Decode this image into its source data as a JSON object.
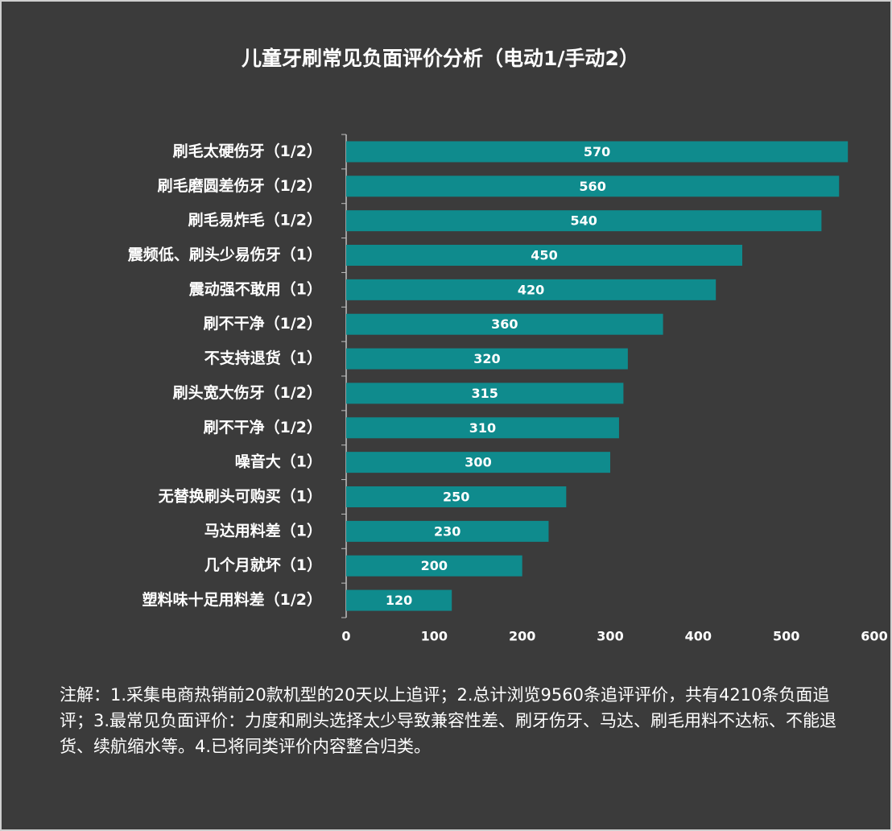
{
  "chart_data": {
    "type": "bar",
    "orientation": "horizontal",
    "title": "儿童牙刷常见负面评价分析（电动1/手动2）",
    "categories": [
      "刷毛太硬伤牙（1/2）",
      "刷毛磨圆差伤牙（1/2）",
      "刷毛易炸毛（1/2）",
      "震频低、刷头少易伤牙（1）",
      "震动强不敢用（1）",
      "刷不干净（1/2）",
      "不支持退货（1）",
      "刷头宽大伤牙（1/2）",
      "刷不干净（1/2）",
      "噪音大（1）",
      "无替换刷头可购买（1）",
      "马达用料差（1）",
      "几个月就坏（1）",
      "塑料味十足用料差（1/2）"
    ],
    "values": [
      570,
      560,
      540,
      450,
      420,
      360,
      320,
      315,
      310,
      300,
      250,
      230,
      200,
      120
    ],
    "color": "#0f8b8d",
    "xlim": [
      0,
      600
    ],
    "xticks": [
      0,
      100,
      200,
      300,
      400,
      500,
      600
    ],
    "grid": false,
    "note": "注解：1.采集电商热销前20款机型的20天以上追评；2.总计浏览9560条追评评价，共有4210条负面追评；3.最常见负面评价：力度和刷头选择太少导致兼容性差、刷牙伤牙、马达、刷毛用料不达标、不能退货、续航缩水等。4.已将同类评价内容整合归类。"
  }
}
